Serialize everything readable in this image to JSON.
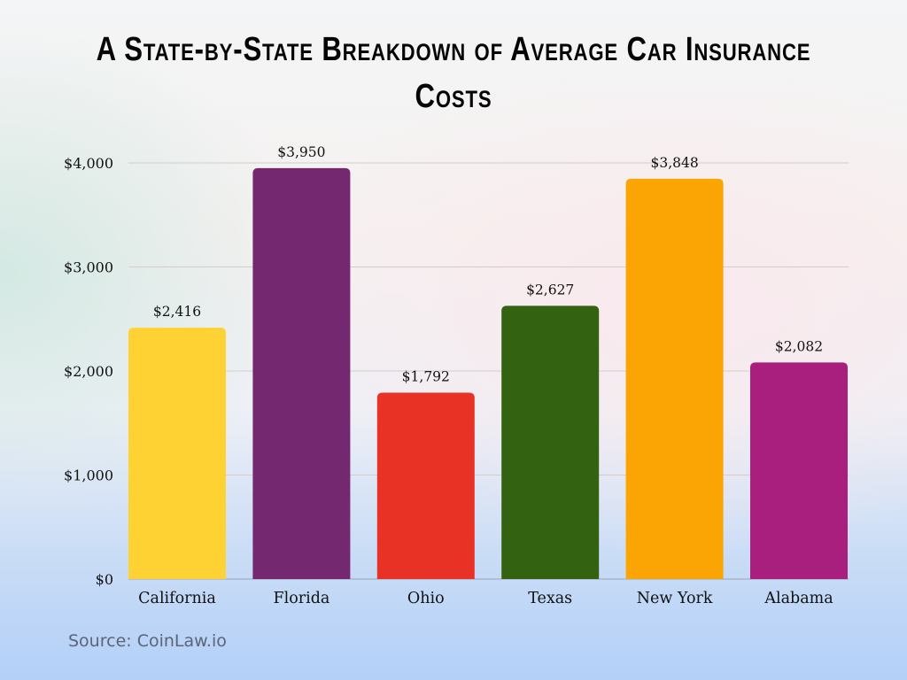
{
  "chart_data": {
    "type": "bar",
    "title": "A State-by-State Breakdown of Average Car Insurance Costs",
    "categories": [
      "California",
      "Florida",
      "Ohio",
      "Texas",
      "New York",
      "Alabama"
    ],
    "values": [
      2416,
      3950,
      1792,
      2627,
      3848,
      2082
    ],
    "value_labels": [
      "$2,416",
      "$3,950",
      "$1,792",
      "$2,627",
      "$3,848",
      "$2,082"
    ],
    "colors": [
      "#fdd232",
      "#742870",
      "#e83226",
      "#336211",
      "#fba505",
      "#a91f7d"
    ],
    "yticks": [
      0,
      1000,
      2000,
      3000,
      4000
    ],
    "ytick_labels": [
      "$0",
      "$1,000",
      "$2,000",
      "$3,000",
      "$4,000"
    ],
    "ylim": [
      0,
      4000
    ],
    "xlabel": "",
    "ylabel": "",
    "grid": true,
    "legend": "none"
  },
  "source": "Source: CoinLaw.io"
}
